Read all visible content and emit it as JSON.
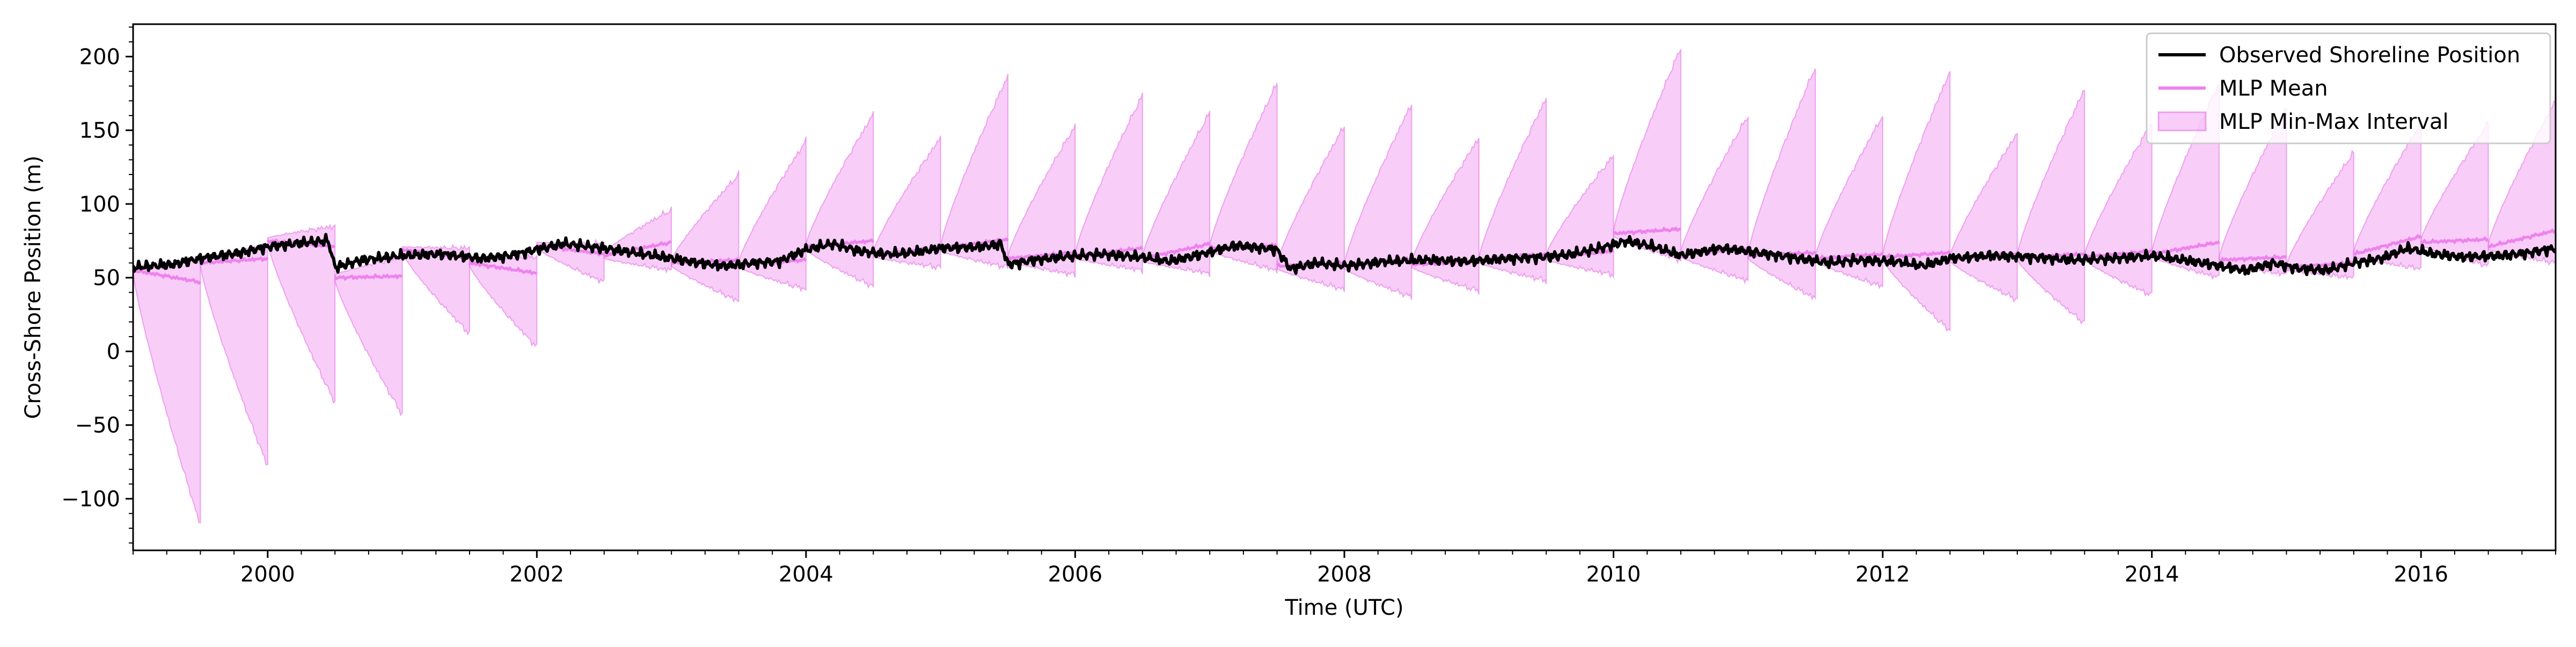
{
  "chart_data": {
    "type": "line",
    "xlabel": "Time (UTC)",
    "ylabel": "Cross-Shore Position (m)",
    "xlim": [
      1999.0,
      2017.0
    ],
    "ylim": [
      -135,
      222
    ],
    "x_ticks": [
      2000,
      2002,
      2004,
      2006,
      2008,
      2010,
      2012,
      2014,
      2016
    ],
    "x_tick_labels": [
      "2000",
      "2002",
      "2004",
      "2006",
      "2008",
      "2010",
      "2012",
      "2014",
      "2016"
    ],
    "y_ticks": [
      -100,
      -50,
      0,
      50,
      100,
      150,
      200
    ],
    "y_tick_labels": [
      "−100",
      "−50",
      "0",
      "50",
      "100",
      "150",
      "200"
    ],
    "grid": false,
    "legend_position": "top-right",
    "colors": {
      "observed": "#000000",
      "mean": "#ee82ee",
      "band_fill": "#ee82ee",
      "band_edge": "#e060e0"
    },
    "legend": [
      {
        "key": "observed",
        "label": "Observed Shoreline Position"
      },
      {
        "key": "mean",
        "label": "MLP Mean"
      },
      {
        "key": "band",
        "label": "MLP Min-Max Interval"
      }
    ],
    "forecast_windows": [
      {
        "start": 1999.0,
        "end": 1999.5,
        "mean_start": 55,
        "mean_end": 47,
        "min_end": -118,
        "max_end": 62
      },
      {
        "start": 1999.5,
        "end": 2000.0,
        "mean_start": 60,
        "mean_end": 63,
        "min_end": -78,
        "max_end": 72
      },
      {
        "start": 2000.0,
        "end": 2000.5,
        "mean_start": 75,
        "mean_end": 71,
        "min_end": -35,
        "max_end": 85
      },
      {
        "start": 2000.5,
        "end": 2001.0,
        "mean_start": 50,
        "mean_end": 51,
        "min_end": -43,
        "max_end": 64
      },
      {
        "start": 2001.0,
        "end": 2001.5,
        "mean_start": 69,
        "mean_end": 63,
        "min_end": 12,
        "max_end": 70
      },
      {
        "start": 2001.5,
        "end": 2002.0,
        "mean_start": 60,
        "mean_end": 53,
        "min_end": 3,
        "max_end": 64
      },
      {
        "start": 2002.0,
        "end": 2002.5,
        "mean_start": 72,
        "mean_end": 66,
        "min_end": 47,
        "max_end": 73
      },
      {
        "start": 2002.5,
        "end": 2003.0,
        "mean_start": 65,
        "mean_end": 74,
        "min_end": 55,
        "max_end": 96
      },
      {
        "start": 2003.0,
        "end": 2003.5,
        "mean_start": 60,
        "mean_end": 62,
        "min_end": 34,
        "max_end": 120
      },
      {
        "start": 2003.5,
        "end": 2004.0,
        "mean_start": 59,
        "mean_end": 62,
        "min_end": 42,
        "max_end": 143
      },
      {
        "start": 2004.0,
        "end": 2004.5,
        "mean_start": 71,
        "mean_end": 75,
        "min_end": 44,
        "max_end": 161
      },
      {
        "start": 2004.5,
        "end": 2005.0,
        "mean_start": 66,
        "mean_end": 70,
        "min_end": 57,
        "max_end": 145
      },
      {
        "start": 2005.0,
        "end": 2005.5,
        "mean_start": 70,
        "mean_end": 76,
        "min_end": 57,
        "max_end": 187
      },
      {
        "start": 2005.5,
        "end": 2006.0,
        "mean_start": 63,
        "mean_end": 67,
        "min_end": 52,
        "max_end": 153
      },
      {
        "start": 2006.0,
        "end": 2006.5,
        "mean_start": 65,
        "mean_end": 70,
        "min_end": 55,
        "max_end": 174
      },
      {
        "start": 2006.5,
        "end": 2007.0,
        "mean_start": 63,
        "mean_end": 73,
        "min_end": 53,
        "max_end": 162
      },
      {
        "start": 2007.0,
        "end": 2007.5,
        "mean_start": 70,
        "mean_end": 72,
        "min_end": 55,
        "max_end": 182
      },
      {
        "start": 2007.5,
        "end": 2008.0,
        "mean_start": 58,
        "mean_end": 60,
        "min_end": 42,
        "max_end": 153
      },
      {
        "start": 2008.0,
        "end": 2008.5,
        "mean_start": 58,
        "mean_end": 63,
        "min_end": 37,
        "max_end": 168
      },
      {
        "start": 2008.5,
        "end": 2009.0,
        "mean_start": 59,
        "mean_end": 61,
        "min_end": 41,
        "max_end": 145
      },
      {
        "start": 2009.0,
        "end": 2009.5,
        "mean_start": 62,
        "mean_end": 66,
        "min_end": 48,
        "max_end": 172
      },
      {
        "start": 2009.5,
        "end": 2010.0,
        "mean_start": 64,
        "mean_end": 68,
        "min_end": 52,
        "max_end": 133
      },
      {
        "start": 2010.0,
        "end": 2010.5,
        "mean_start": 80,
        "mean_end": 83,
        "min_end": 62,
        "max_end": 206
      },
      {
        "start": 2010.5,
        "end": 2011.0,
        "mean_start": 66,
        "mean_end": 70,
        "min_end": 48,
        "max_end": 160
      },
      {
        "start": 2011.0,
        "end": 2011.5,
        "mean_start": 65,
        "mean_end": 67,
        "min_end": 36,
        "max_end": 193
      },
      {
        "start": 2011.5,
        "end": 2012.0,
        "mean_start": 63,
        "mean_end": 66,
        "min_end": 44,
        "max_end": 160
      },
      {
        "start": 2012.0,
        "end": 2012.5,
        "mean_start": 64,
        "mean_end": 67,
        "min_end": 14,
        "max_end": 190
      },
      {
        "start": 2012.5,
        "end": 2013.0,
        "mean_start": 63,
        "mean_end": 66,
        "min_end": 35,
        "max_end": 148
      },
      {
        "start": 2013.0,
        "end": 2013.5,
        "mean_start": 64,
        "mean_end": 66,
        "min_end": 19,
        "max_end": 178
      },
      {
        "start": 2013.5,
        "end": 2014.0,
        "mean_start": 64,
        "mean_end": 68,
        "min_end": 38,
        "max_end": 155
      },
      {
        "start": 2014.0,
        "end": 2014.5,
        "mean_start": 66,
        "mean_end": 74,
        "min_end": 50,
        "max_end": 182
      },
      {
        "start": 2014.5,
        "end": 2015.0,
        "mean_start": 62,
        "mean_end": 64,
        "min_end": 52,
        "max_end": 165
      },
      {
        "start": 2015.0,
        "end": 2015.5,
        "mean_start": 57,
        "mean_end": 60,
        "min_end": 50,
        "max_end": 135
      },
      {
        "start": 2015.5,
        "end": 2016.0,
        "mean_start": 66,
        "mean_end": 78,
        "min_end": 56,
        "max_end": 155
      },
      {
        "start": 2016.0,
        "end": 2016.5,
        "mean_start": 74,
        "mean_end": 76,
        "min_end": 58,
        "max_end": 155
      },
      {
        "start": 2016.5,
        "end": 2017.0,
        "mean_start": 71,
        "mean_end": 82,
        "min_end": 60,
        "max_end": 170
      }
    ],
    "observed_anchor_points": [
      [
        1999.0,
        57
      ],
      [
        1999.3,
        59
      ],
      [
        1999.5,
        63
      ],
      [
        1999.8,
        67
      ],
      [
        2000.0,
        71
      ],
      [
        2000.3,
        74
      ],
      [
        2000.45,
        75
      ],
      [
        2000.5,
        57
      ],
      [
        2000.7,
        62
      ],
      [
        2000.9,
        64
      ],
      [
        2001.0,
        65
      ],
      [
        2001.3,
        66
      ],
      [
        2001.6,
        63
      ],
      [
        2001.8,
        65
      ],
      [
        2002.0,
        69
      ],
      [
        2002.2,
        73
      ],
      [
        2002.5,
        70
      ],
      [
        2002.8,
        66
      ],
      [
        2003.0,
        63
      ],
      [
        2003.2,
        60
      ],
      [
        2003.4,
        58
      ],
      [
        2003.6,
        60
      ],
      [
        2003.8,
        61
      ],
      [
        2004.0,
        69
      ],
      [
        2004.2,
        73
      ],
      [
        2004.4,
        68
      ],
      [
        2004.6,
        66
      ],
      [
        2004.8,
        67
      ],
      [
        2005.0,
        70
      ],
      [
        2005.3,
        71
      ],
      [
        2005.45,
        73
      ],
      [
        2005.5,
        59
      ],
      [
        2005.7,
        62
      ],
      [
        2005.9,
        64
      ],
      [
        2006.2,
        66
      ],
      [
        2006.5,
        64
      ],
      [
        2006.7,
        61
      ],
      [
        2006.9,
        65
      ],
      [
        2007.2,
        72
      ],
      [
        2007.5,
        69
      ],
      [
        2007.6,
        56
      ],
      [
        2007.8,
        60
      ],
      [
        2008.0,
        58
      ],
      [
        2008.3,
        61
      ],
      [
        2008.6,
        62
      ],
      [
        2008.9,
        61
      ],
      [
        2009.2,
        63
      ],
      [
        2009.5,
        64
      ],
      [
        2009.7,
        66
      ],
      [
        2009.9,
        70
      ],
      [
        2010.1,
        75
      ],
      [
        2010.3,
        71
      ],
      [
        2010.5,
        65
      ],
      [
        2010.8,
        70
      ],
      [
        2011.0,
        68
      ],
      [
        2011.3,
        64
      ],
      [
        2011.6,
        60
      ],
      [
        2011.8,
        62
      ],
      [
        2012.1,
        61
      ],
      [
        2012.3,
        58
      ],
      [
        2012.5,
        63
      ],
      [
        2012.8,
        65
      ],
      [
        2013.1,
        64
      ],
      [
        2013.4,
        62
      ],
      [
        2013.7,
        63
      ],
      [
        2014.0,
        65
      ],
      [
        2014.3,
        61
      ],
      [
        2014.5,
        58
      ],
      [
        2014.7,
        55
      ],
      [
        2014.9,
        60
      ],
      [
        2015.1,
        56
      ],
      [
        2015.3,
        55
      ],
      [
        2015.5,
        60
      ],
      [
        2015.7,
        63
      ],
      [
        2015.9,
        70
      ],
      [
        2016.1,
        66
      ],
      [
        2016.3,
        64
      ],
      [
        2016.6,
        65
      ],
      [
        2016.8,
        67
      ],
      [
        2017.0,
        70
      ]
    ]
  }
}
